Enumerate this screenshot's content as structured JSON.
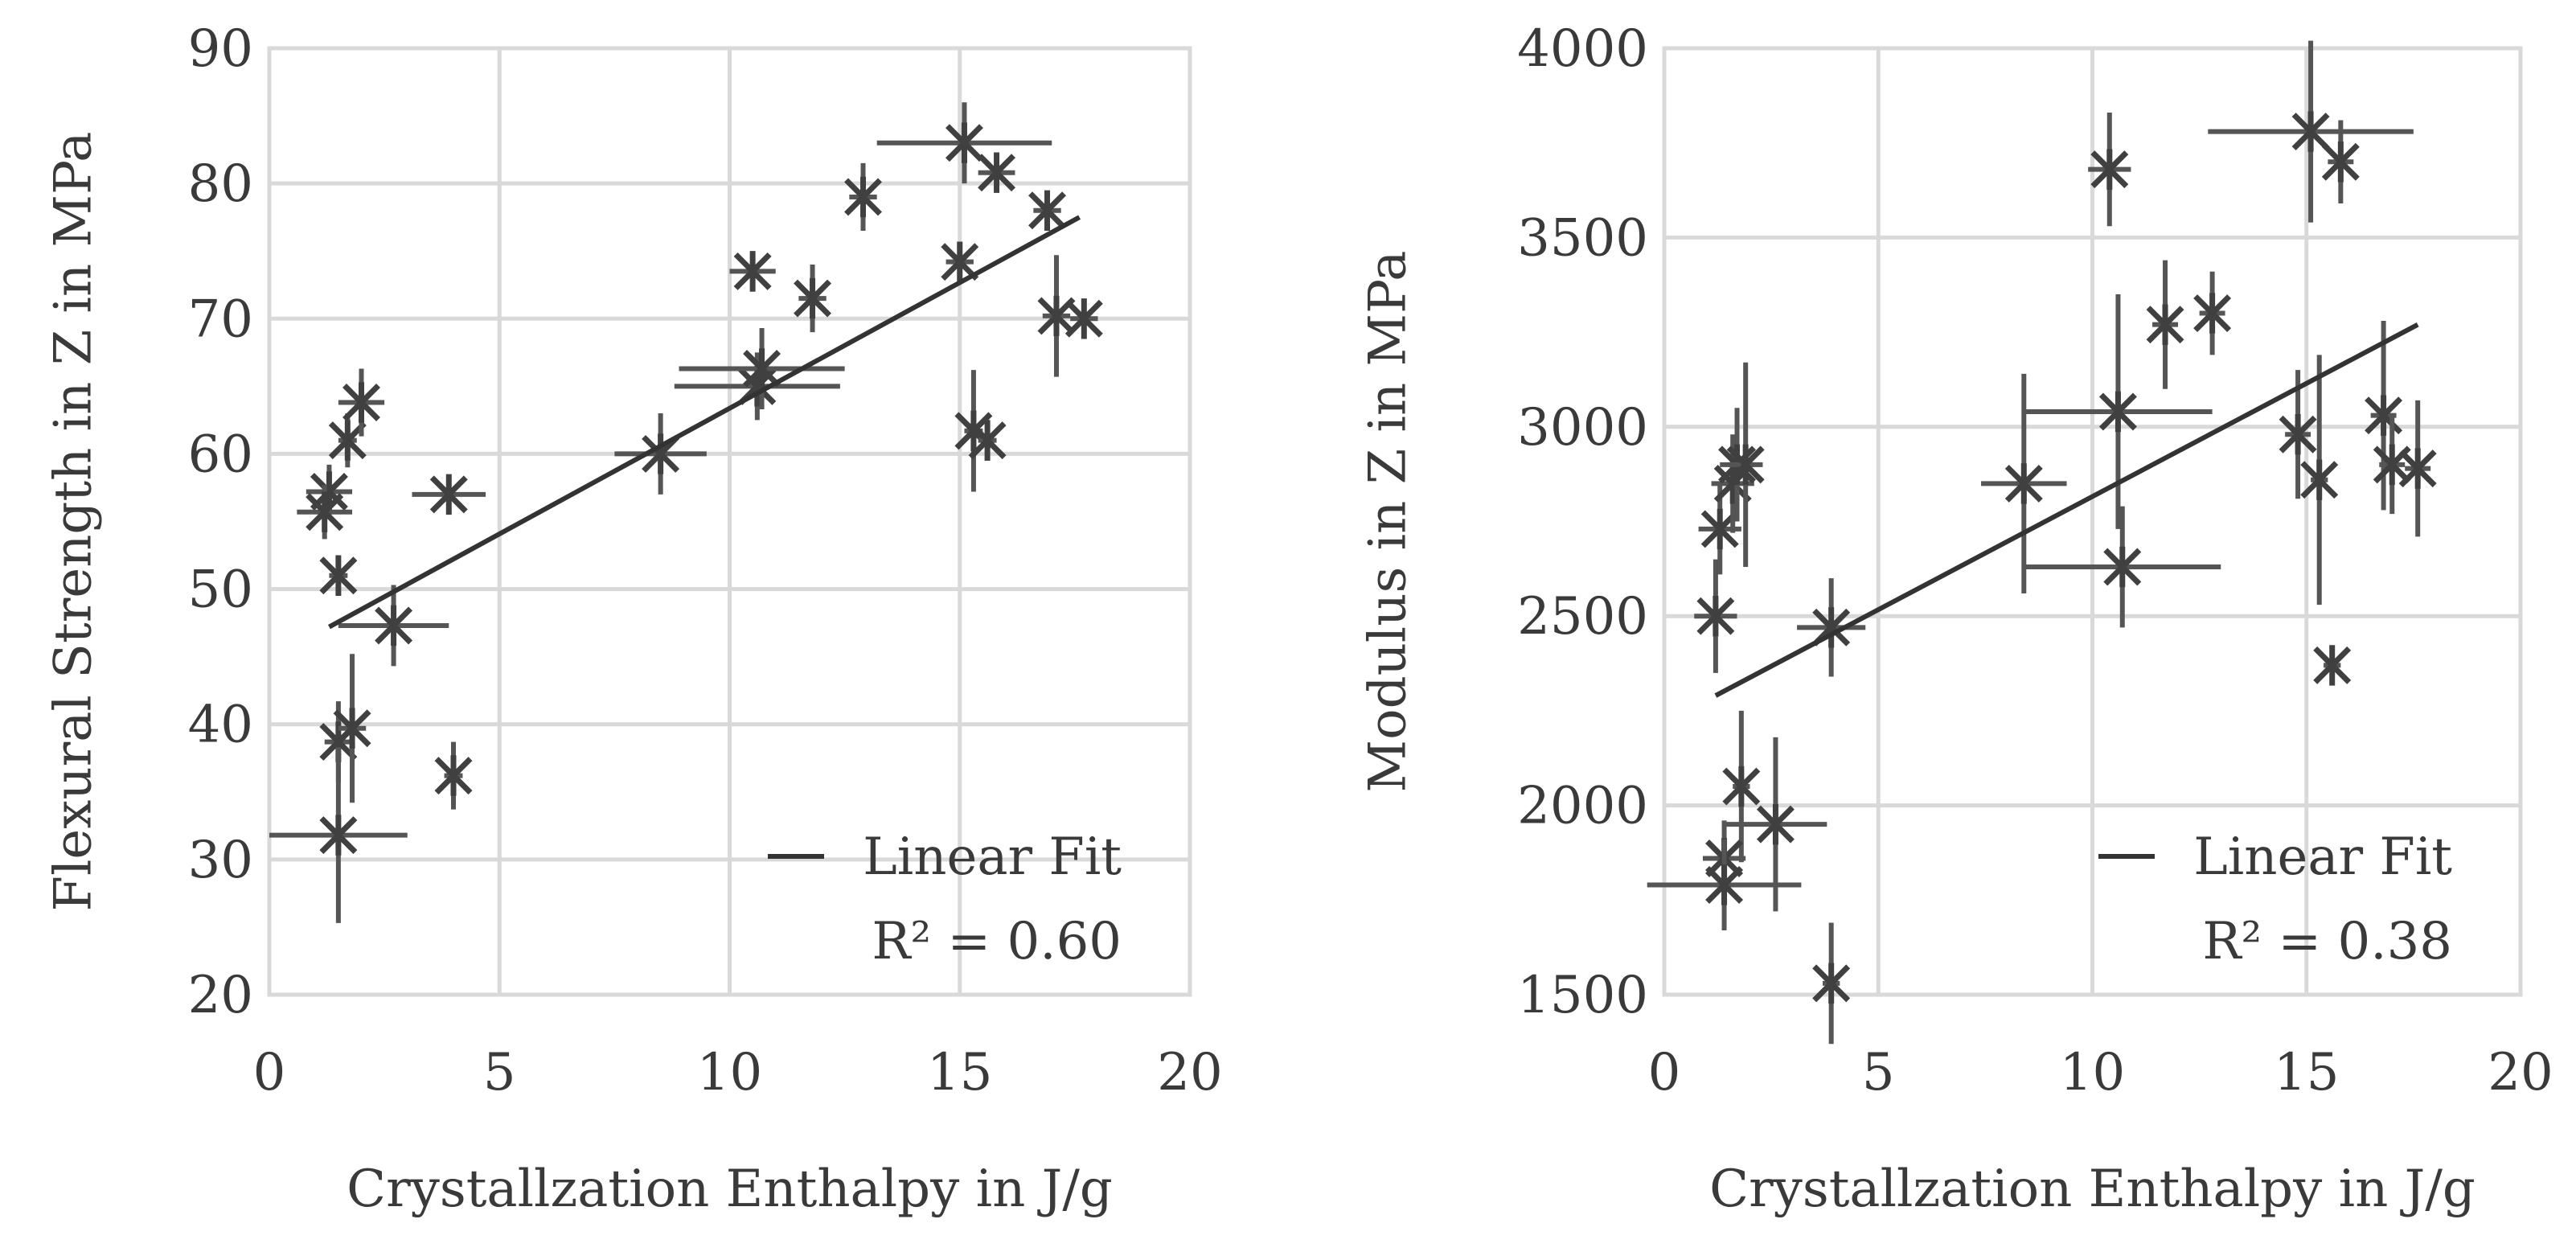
{
  "chart_data": [
    {
      "type": "scatter",
      "xlabel": "Crystallzation  Enthalpy in J/g",
      "ylabel": "Flexural Strength in Z in MPa",
      "xlim": [
        0,
        20
      ],
      "ylim": [
        20,
        90
      ],
      "x_ticks": [
        "0",
        "5",
        "10",
        "15",
        "20"
      ],
      "y_ticks": [
        "20",
        "30",
        "40",
        "50",
        "60",
        "70",
        "80",
        "90"
      ],
      "grid": true,
      "legend": {
        "position": "bottom-right",
        "line_label": "Linear Fit",
        "r2_text": "R² = 0.60"
      },
      "fit": {
        "x": [
          1.3,
          17.6
        ],
        "y": [
          47.2,
          77.5
        ]
      },
      "points": [
        {
          "x": 1.3,
          "y": 57.2,
          "ex": 0.5,
          "ey": 2
        },
        {
          "x": 1.2,
          "y": 55.7,
          "ex": 0.6,
          "ey": 2
        },
        {
          "x": 1.5,
          "y": 51,
          "ex": 0.2,
          "ey": 1.5
        },
        {
          "x": 1.7,
          "y": 61,
          "ex": 0.2,
          "ey": 2
        },
        {
          "x": 2.0,
          "y": 63.8,
          "ex": 0.5,
          "ey": 2.5
        },
        {
          "x": 2.7,
          "y": 47.3,
          "ex": 1.2,
          "ey": 3
        },
        {
          "x": 3.9,
          "y": 57,
          "ex": 0.8,
          "ey": 1
        },
        {
          "x": 4.0,
          "y": 36.2,
          "ex": 0.2,
          "ey": 2.5
        },
        {
          "x": 1.5,
          "y": 38.7,
          "ex": 0.3,
          "ey": 3
        },
        {
          "x": 1.8,
          "y": 39.7,
          "ex": 0.3,
          "ey": 5.5
        },
        {
          "x": 1.5,
          "y": 31.8,
          "ex": 1.5,
          "ey": 6.5
        },
        {
          "x": 8.5,
          "y": 60,
          "ex": 1.0,
          "ey": 3
        },
        {
          "x": 10.5,
          "y": 73.5,
          "ex": 0.5,
          "ey": 1.5
        },
        {
          "x": 10.6,
          "y": 65,
          "ex": 1.8,
          "ey": 2.5
        },
        {
          "x": 10.7,
          "y": 66.3,
          "ex": 1.8,
          "ey": 3
        },
        {
          "x": 11.8,
          "y": 71.5,
          "ex": 0.3,
          "ey": 2.5
        },
        {
          "x": 12.9,
          "y": 79,
          "ex": 0.3,
          "ey": 2.5
        },
        {
          "x": 15.0,
          "y": 74.2,
          "ex": 0.3,
          "ey": 1
        },
        {
          "x": 15.1,
          "y": 83,
          "ex": 1.9,
          "ey": 3
        },
        {
          "x": 15.3,
          "y": 61.7,
          "ex": 0.2,
          "ey": 4.5
        },
        {
          "x": 15.6,
          "y": 61,
          "ex": 0.2,
          "ey": 1.5
        },
        {
          "x": 15.8,
          "y": 80.8,
          "ex": 0.4,
          "ey": 1
        },
        {
          "x": 16.9,
          "y": 78,
          "ex": 0.3,
          "ey": 1
        },
        {
          "x": 17.1,
          "y": 70.2,
          "ex": 0.3,
          "ey": 4.5
        },
        {
          "x": 17.7,
          "y": 70,
          "ex": 0.3,
          "ey": 1
        }
      ]
    },
    {
      "type": "scatter",
      "xlabel": "Crystallzation  Enthalpy in J/g",
      "ylabel": "Modulus in Z in MPa",
      "xlim": [
        0,
        20
      ],
      "ylim": [
        1500,
        4000
      ],
      "x_ticks": [
        "0",
        "5",
        "10",
        "15",
        "20"
      ],
      "y_ticks": [
        "1500",
        "2000",
        "2500",
        "3000",
        "3500",
        "4000"
      ],
      "grid": true,
      "legend": {
        "position": "bottom-right",
        "line_label": "Linear Fit",
        "r2_text": "R² = 0.38"
      },
      "fit": {
        "x": [
          1.2,
          17.6
        ],
        "y": [
          2290,
          3270
        ]
      },
      "points": [
        {
          "x": 1.2,
          "y": 2500,
          "ex": 0.5,
          "ey": 150
        },
        {
          "x": 1.3,
          "y": 2730,
          "ex": 0.5,
          "ey": 120
        },
        {
          "x": 1.6,
          "y": 2850,
          "ex": 0.5,
          "ey": 130
        },
        {
          "x": 1.7,
          "y": 2900,
          "ex": 0.4,
          "ey": 150
        },
        {
          "x": 1.9,
          "y": 2900,
          "ex": 0.4,
          "ey": 270
        },
        {
          "x": 1.8,
          "y": 2050,
          "ex": 0.2,
          "ey": 200
        },
        {
          "x": 2.6,
          "y": 1950,
          "ex": 1.2,
          "ey": 230
        },
        {
          "x": 1.4,
          "y": 1860,
          "ex": 0.5,
          "ey": 100
        },
        {
          "x": 1.4,
          "y": 1790,
          "ex": 1.8,
          "ey": 120
        },
        {
          "x": 3.9,
          "y": 1530,
          "ex": 0.2,
          "ey": 160
        },
        {
          "x": 3.9,
          "y": 2470,
          "ex": 0.8,
          "ey": 130
        },
        {
          "x": 8.4,
          "y": 2850,
          "ex": 1.0,
          "ey": 290
        },
        {
          "x": 10.4,
          "y": 3680,
          "ex": 0.5,
          "ey": 150
        },
        {
          "x": 10.6,
          "y": 3040,
          "ex": 2.2,
          "ey": 310
        },
        {
          "x": 10.7,
          "y": 2630,
          "ex": 2.3,
          "ey": 160
        },
        {
          "x": 11.7,
          "y": 3270,
          "ex": 0.3,
          "ey": 170
        },
        {
          "x": 12.8,
          "y": 3300,
          "ex": 0.3,
          "ey": 110
        },
        {
          "x": 14.8,
          "y": 2980,
          "ex": 0.3,
          "ey": 170
        },
        {
          "x": 15.1,
          "y": 3780,
          "ex": 2.4,
          "ey": 240
        },
        {
          "x": 15.3,
          "y": 2860,
          "ex": 0.2,
          "ey": 330
        },
        {
          "x": 15.6,
          "y": 2370,
          "ex": 0.2,
          "ey": 40
        },
        {
          "x": 15.8,
          "y": 3700,
          "ex": 0.3,
          "ey": 110
        },
        {
          "x": 16.8,
          "y": 3030,
          "ex": 0.3,
          "ey": 250
        },
        {
          "x": 17.0,
          "y": 2900,
          "ex": 0.3,
          "ey": 130
        },
        {
          "x": 17.6,
          "y": 2890,
          "ex": 0.3,
          "ey": 180
        }
      ]
    }
  ]
}
